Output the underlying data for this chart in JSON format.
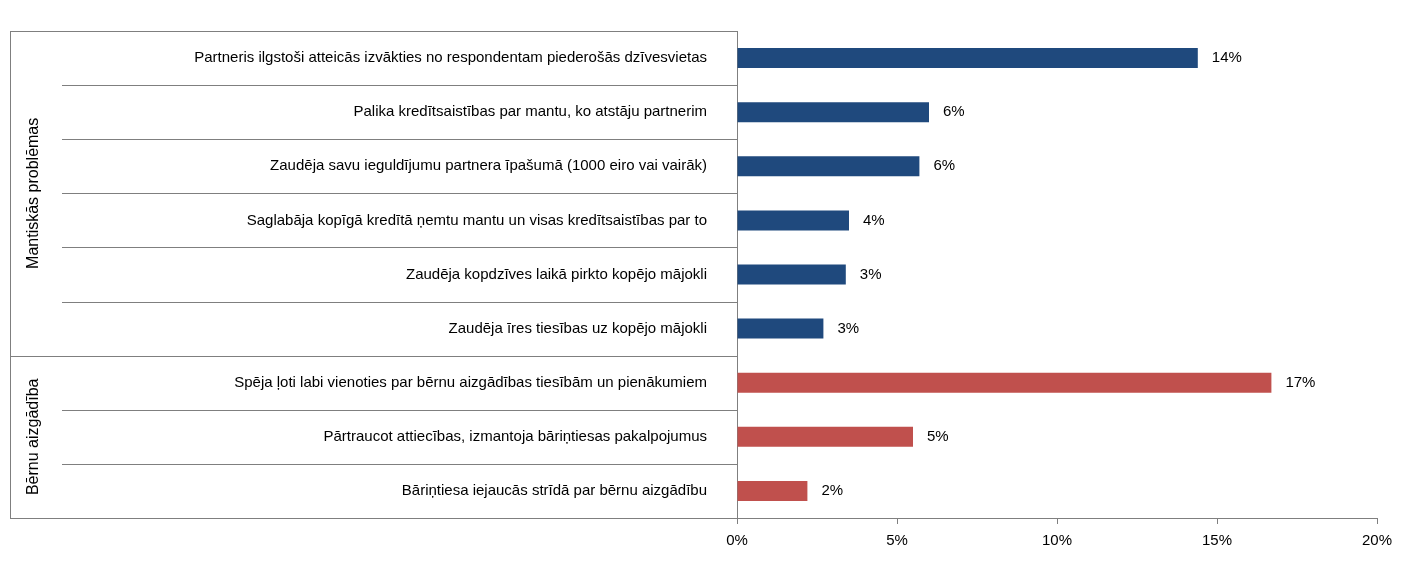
{
  "chart_data": {
    "type": "bar",
    "orientation": "horizontal",
    "categories": [
      "Partneris ilgstoši atteicās izvākties no respondentam piederošās dzīvesvietas",
      "Palika kredītsaistības par mantu, ko atstāju partnerim",
      "Zaudēja savu ieguldījumu partnera īpašumā (1000 eiro vai vairāk)",
      "Saglabāja kopīgā kredītā ņemtu mantu un visas kredītsaistības par to",
      "Zaudēja kopdzīves laikā pirkto kopējo mājokli",
      "Zaudēja īres tiesības uz kopējo mājokli",
      "Spēja ļoti labi vienoties par bērnu aizgādības tiesībām un pienākumiem",
      "Pārtraucot attiecības, izmantoja bāriņtiesas pakalpojumus",
      "Bāriņtiesa iejaucās strīdā par bērnu aizgādību"
    ],
    "series": [
      {
        "color": "#1f497d",
        "values": [
          14.4,
          6.0,
          5.7,
          3.5,
          3.4,
          2.7,
          null,
          null,
          null
        ],
        "value_labels": [
          "14%",
          "6%",
          "6%",
          "4%",
          "3%",
          "3%",
          null,
          null,
          null
        ]
      },
      {
        "color": "#c0504d",
        "values": [
          null,
          null,
          null,
          null,
          null,
          null,
          16.7,
          5.5,
          2.2
        ],
        "value_labels": [
          null,
          null,
          null,
          null,
          null,
          null,
          "17%",
          "5%",
          "2%"
        ]
      }
    ],
    "annotations": [
      "Mantiskās problēmas",
      "Bērnu aizgādība"
    ],
    "xlim": [
      0,
      20
    ],
    "xticks": [
      {
        "value": 0,
        "label": "0%"
      },
      {
        "value": 5,
        "label": "5%"
      },
      {
        "value": 10,
        "label": "10%"
      },
      {
        "value": 15,
        "label": "15%"
      },
      {
        "value": 20,
        "label": "20%"
      }
    ]
  }
}
